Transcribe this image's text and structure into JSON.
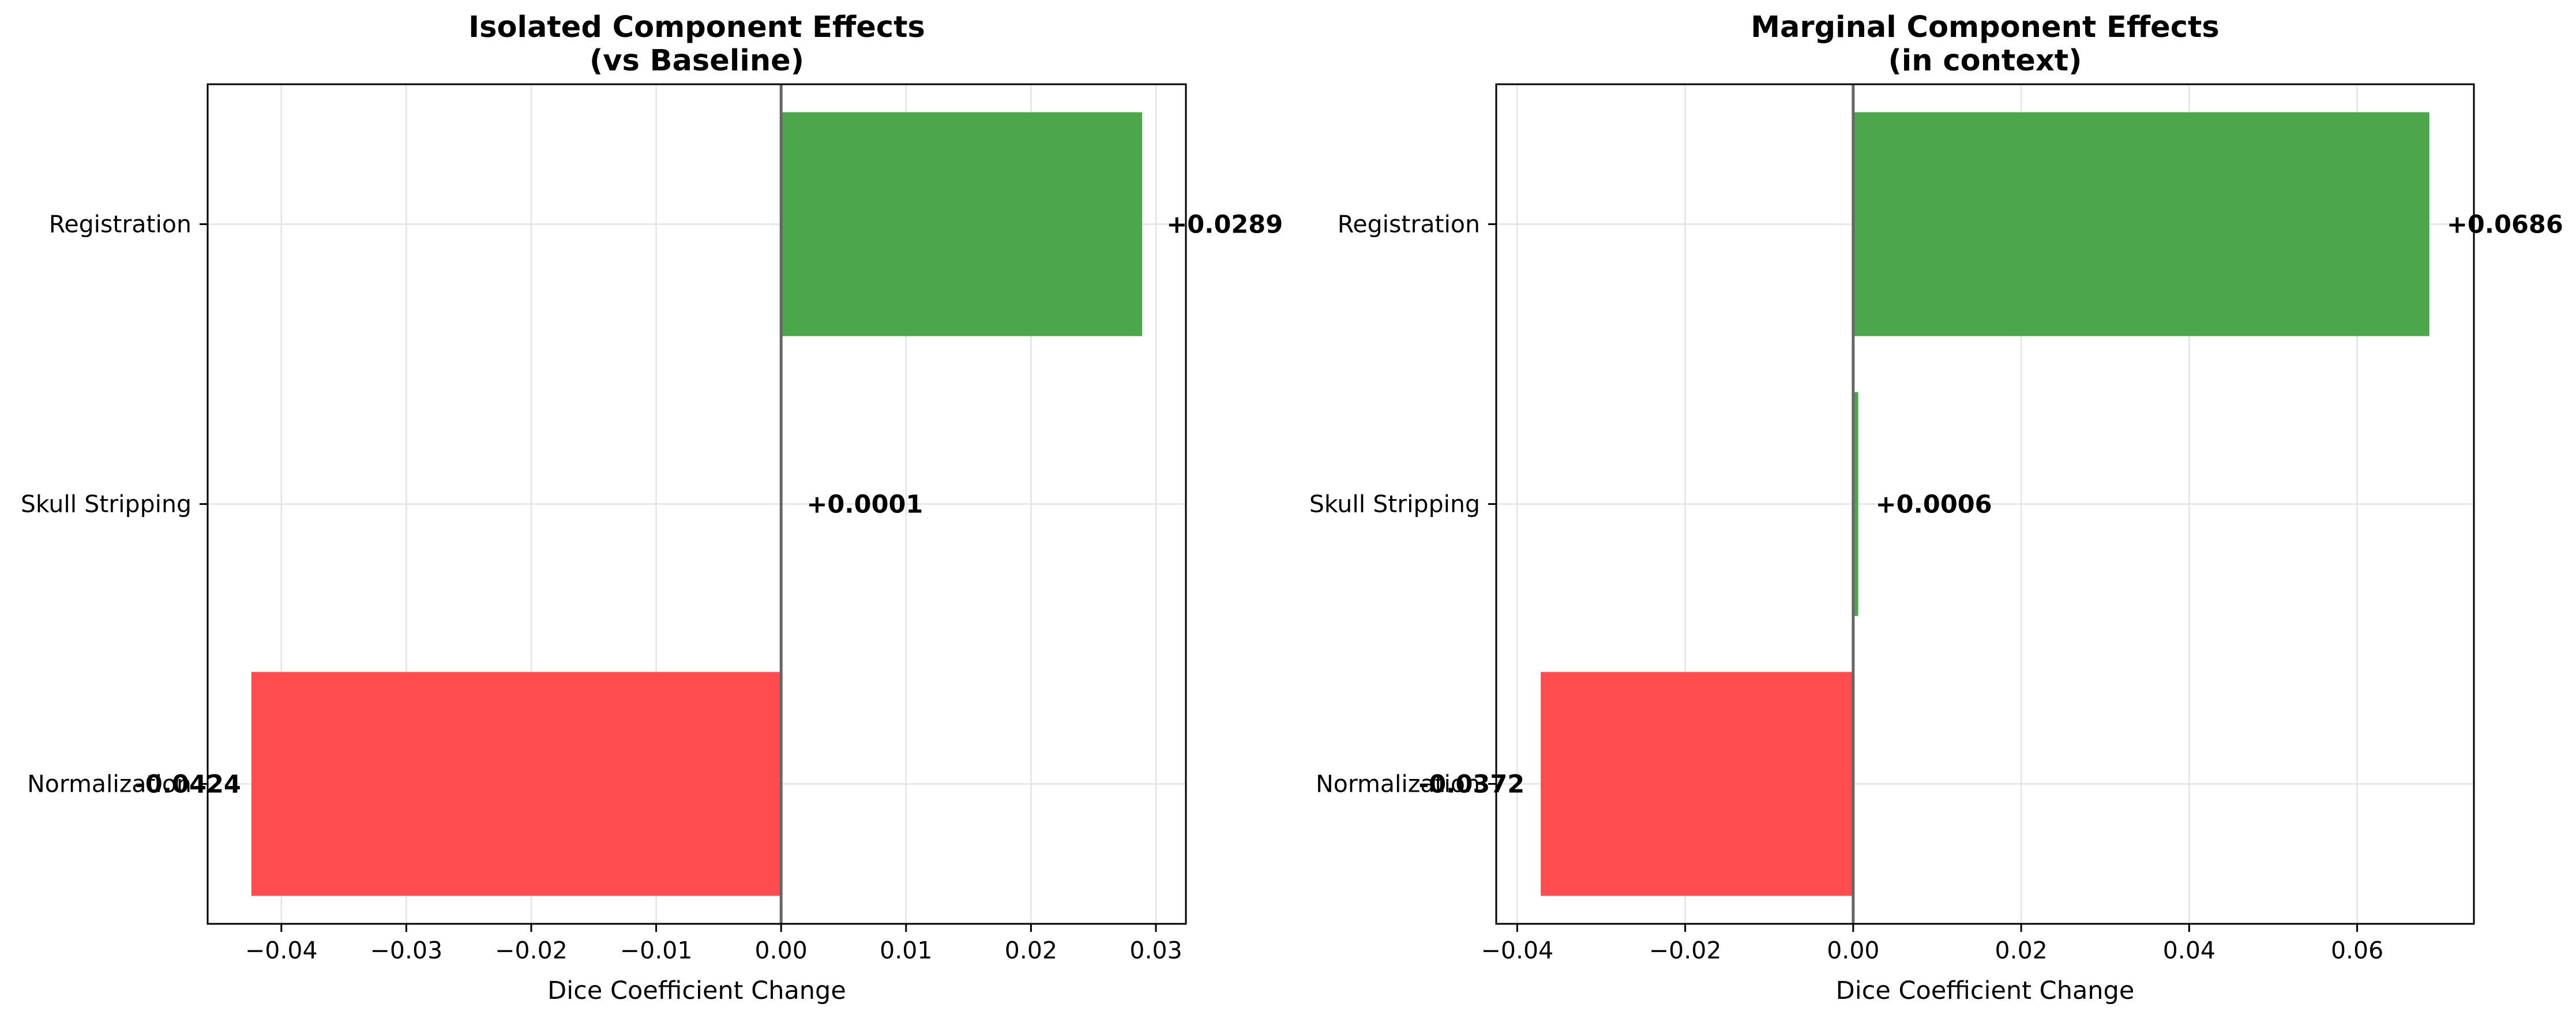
{
  "chart_data": [
    {
      "type": "bar",
      "orientation": "horizontal",
      "title": "Isolated Component Effects\n(vs Baseline)",
      "xlabel": "Dice Coefficient Change",
      "ylabel": "",
      "categories": [
        "Registration",
        "Skull Stripping",
        "Normalization"
      ],
      "values": [
        0.0289,
        0.0001,
        -0.0424
      ],
      "value_labels": [
        "+0.0289",
        "+0.0001",
        "-0.0424"
      ],
      "xlim": [
        -0.0459,
        0.0324
      ],
      "xticks": [
        -0.04,
        -0.03,
        -0.02,
        -0.01,
        0.0,
        0.01,
        0.02,
        0.03
      ],
      "xtick_labels": [
        "−0.04",
        "−0.03",
        "−0.02",
        "−0.01",
        "0.00",
        "0.01",
        "0.02",
        "0.03"
      ],
      "grid": true,
      "zero_line": true
    },
    {
      "type": "bar",
      "orientation": "horizontal",
      "title": "Marginal Component Effects\n(in context)",
      "xlabel": "Dice Coefficient Change",
      "ylabel": "",
      "categories": [
        "Registration",
        "Skull Stripping",
        "Normalization"
      ],
      "values": [
        0.0686,
        0.0006,
        -0.0372
      ],
      "value_labels": [
        "+0.0686",
        "+0.0006",
        "-0.0372"
      ],
      "xlim": [
        -0.0425,
        0.0739
      ],
      "xticks": [
        -0.04,
        -0.02,
        0.0,
        0.02,
        0.04,
        0.06
      ],
      "xtick_labels": [
        "−0.04",
        "−0.02",
        "0.00",
        "0.02",
        "0.04",
        "0.06"
      ],
      "grid": true,
      "zero_line": true
    }
  ],
  "colors": {
    "positive": "#4ca64c",
    "negative": "#ff4c4f",
    "grid": "#e4e4e4",
    "zero_line": "#666666",
    "frame": "#000000"
  }
}
